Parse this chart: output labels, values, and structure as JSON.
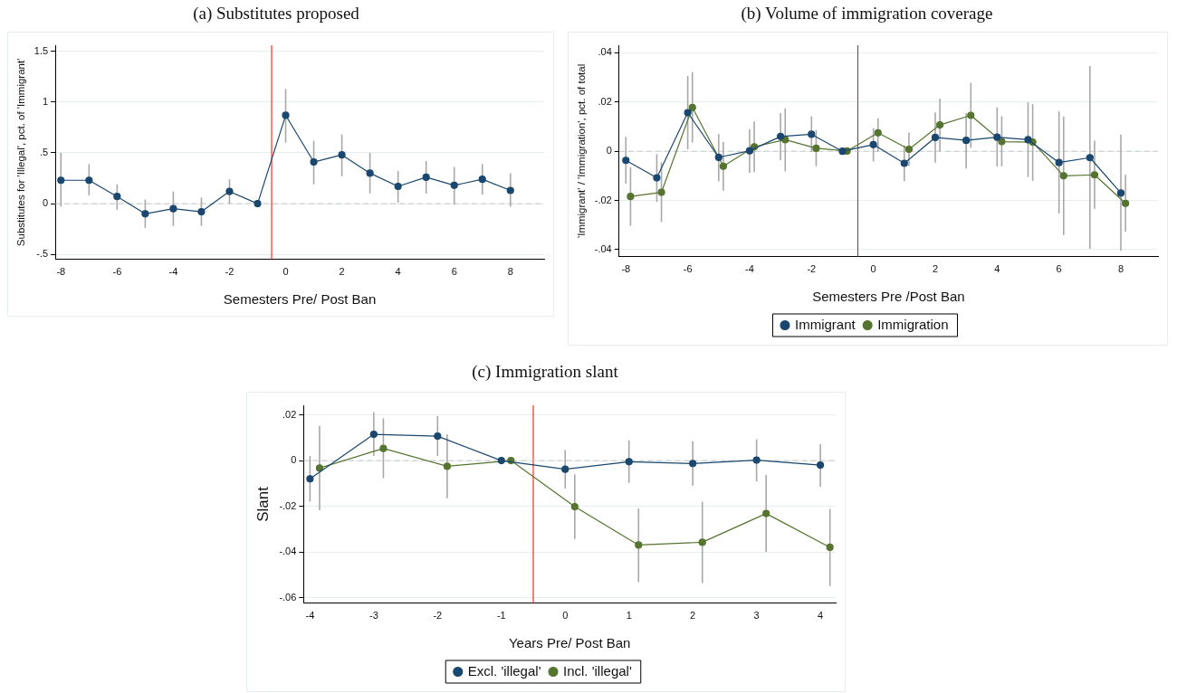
{
  "chart_data": [
    {
      "type": "line",
      "title": "(a) Substitutes proposed",
      "xlabel": "Semesters Pre/ Post Ban",
      "ylabel": "Substitutes for 'Illegal', pct. of 'Immigrant'",
      "marker": "circle",
      "grid": "y",
      "legend": false,
      "xlim": [
        -8.2,
        9.2
      ],
      "xticks": [
        -8,
        -6,
        -4,
        -2,
        0,
        2,
        4,
        6,
        8
      ],
      "ylim": [
        -0.55,
        1.56
      ],
      "yticks": [
        {
          "value": -0.5,
          "label": "-.5"
        },
        0,
        {
          "value": 0.5,
          "label": ".5"
        },
        1,
        1.5
      ],
      "ref_lines": [
        {
          "axis": "x",
          "value": -0.5,
          "color": "#ff0000",
          "line_style": "solid"
        },
        {
          "axis": "y",
          "value": 0,
          "color": "#c8c8c8",
          "line_style": "dashed"
        }
      ],
      "series": [
        {
          "color": "#1a476f",
          "x": [
            -8,
            -7,
            -6,
            -5,
            -4,
            -3,
            -2,
            -1,
            0,
            1,
            2,
            3,
            4,
            5,
            6,
            7,
            8
          ],
          "values": [
            0.23,
            0.23,
            0.07,
            -0.1,
            -0.05,
            -0.08,
            0.12,
            0,
            0.87,
            0.41,
            0.48,
            0.3,
            0.17,
            0.26,
            0.18,
            0.24,
            0.13
          ],
          "errors": [
            [
              -0.03,
              0.5
            ],
            [
              0.08,
              0.39
            ],
            [
              -0.06,
              0.19
            ],
            [
              -0.24,
              0.04
            ],
            [
              -0.22,
              0.12
            ],
            [
              -0.22,
              0.06
            ],
            [
              0.0,
              0.24
            ],
            null,
            [
              0.6,
              1.13
            ],
            [
              0.19,
              0.62
            ],
            [
              0.27,
              0.68
            ],
            [
              0.1,
              0.5
            ],
            [
              0.01,
              0.32
            ],
            [
              0.1,
              0.42
            ],
            [
              -0.01,
              0.36
            ],
            [
              0.09,
              0.39
            ],
            [
              -0.03,
              0.3
            ]
          ]
        }
      ]
    },
    {
      "type": "line",
      "title": "(b) Volume of immigration coverage",
      "xlabel": "Semesters Pre /Post Ban",
      "ylabel": "'Immigrant' / 'Immigration', pct. of total",
      "marker": "circle",
      "grid": "y",
      "legend": "bottom",
      "xlim": [
        -8.22,
        9.2
      ],
      "xticks": [
        -8,
        -6,
        -4,
        -2,
        0,
        2,
        4,
        6,
        8
      ],
      "ylim": [
        -0.0429,
        0.0431
      ],
      "yticks": [
        {
          "value": -0.04,
          "label": "-.04"
        },
        {
          "value": -0.02,
          "label": "-.02"
        },
        0,
        {
          "value": 0.02,
          "label": ".02"
        },
        {
          "value": 0.04,
          "label": ".04"
        }
      ],
      "ref_lines": [
        {
          "axis": "x",
          "value": -0.5,
          "color": "#ff0000",
          "line_style": "solid"
        },
        {
          "axis": "y",
          "value": 0,
          "color": "#c8c8c8",
          "line_style": "dashed"
        }
      ],
      "series": [
        {
          "name": "Immigrant",
          "color": "#1a476f",
          "x": [
            -8,
            -7,
            -6,
            -5,
            -4,
            -3,
            -2,
            -1,
            0,
            1,
            2,
            3,
            4,
            5,
            6,
            7,
            8
          ],
          "values": [
            -0.0037,
            -0.0108,
            0.0157,
            -0.0025,
            0.0002,
            0.006,
            0.0069,
            0,
            0.0027,
            -0.0049,
            0.0056,
            0.0044,
            0.0057,
            0.0047,
            -0.0046,
            -0.0026,
            -0.017
          ],
          "errors": [
            [
              -0.0132,
              0.0058
            ],
            [
              -0.0206,
              -0.0012
            ],
            [
              0.0008,
              0.0306
            ],
            [
              -0.0122,
              0.007
            ],
            [
              -0.0088,
              0.009
            ],
            [
              -0.0036,
              0.0155
            ],
            [
              -0.0003,
              0.0142
            ],
            null,
            [
              -0.0042,
              0.0094
            ],
            [
              -0.0122,
              0.0024
            ],
            [
              -0.0046,
              0.0158
            ],
            [
              -0.007,
              0.0155
            ],
            [
              -0.0062,
              0.0178
            ],
            [
              -0.0105,
              0.0199
            ],
            [
              -0.0253,
              0.0162
            ],
            [
              -0.0397,
              0.0346
            ],
            [
              -0.0405,
              0.0068
            ]
          ]
        },
        {
          "name": "Immigration",
          "color": "#55752f",
          "x": [
            -7.85,
            -6.85,
            -5.85,
            -4.85,
            -3.85,
            -2.85,
            -1.85,
            -0.85,
            0.15,
            1.15,
            2.15,
            3.15,
            4.15,
            5.15,
            6.15,
            7.15,
            8.15
          ],
          "values": [
            -0.0184,
            -0.0167,
            0.0178,
            -0.0061,
            0.0018,
            0.0047,
            0.0012,
            0.0001,
            0.0075,
            0.0008,
            0.0107,
            0.0146,
            0.0039,
            0.0037,
            -0.01,
            -0.0096,
            -0.0212
          ],
          "errors": [
            [
              -0.0303,
              -0.0065
            ],
            [
              -0.0288,
              -0.0045
            ],
            [
              0.0035,
              0.0322
            ],
            [
              -0.016,
              0.0037
            ],
            [
              -0.0085,
              0.0121
            ],
            [
              -0.0082,
              0.0174
            ],
            [
              -0.0061,
              0.0086
            ],
            null,
            [
              -0.0003,
              0.0134
            ],
            [
              -0.006,
              0.0075
            ],
            [
              0,
              0.0214
            ],
            [
              0.0014,
              0.0278
            ],
            [
              -0.0061,
              0.0142
            ],
            [
              -0.012,
              0.0192
            ],
            [
              -0.0341,
              0.0141
            ],
            [
              -0.0234,
              0.0043
            ],
            [
              -0.0328,
              -0.0096
            ]
          ]
        }
      ]
    },
    {
      "type": "line",
      "title": "(c) Immigration slant",
      "xlabel": "Years Pre/ Post Ban",
      "ylabel": "Slant",
      "marker": "circle",
      "grid": "y",
      "legend": "bottom",
      "xlim": [
        -4.1,
        4.24
      ],
      "xticks": [
        -4,
        -3,
        -2,
        -1,
        0,
        1,
        2,
        3,
        4
      ],
      "ylim": [
        -0.0625,
        0.0242
      ],
      "yticks": [
        {
          "value": -0.06,
          "label": "-.06"
        },
        {
          "value": -0.04,
          "label": "-.04"
        },
        {
          "value": -0.02,
          "label": "-.02"
        },
        0,
        {
          "value": 0.02,
          "label": ".02"
        }
      ],
      "ref_lines": [
        {
          "axis": "x",
          "value": -0.5,
          "color": "#ff0000",
          "line_style": "solid"
        },
        {
          "axis": "y",
          "value": 0,
          "color": "#c8c8c8",
          "line_style": "dashed"
        }
      ],
      "series": [
        {
          "name": "Excl. 'illegal'",
          "color": "#1a476f",
          "x": [
            -4,
            -3,
            -2,
            -1,
            0,
            1,
            2,
            3,
            4
          ],
          "values": [
            -0.008,
            0.0115,
            0.0107,
            0,
            -0.0038,
            -0.0005,
            -0.0013,
            0.0002,
            -0.002
          ],
          "errors": [
            [
              -0.018,
              0.002
            ],
            [
              0.002,
              0.0212
            ],
            [
              0.002,
              0.0195
            ],
            null,
            [
              -0.0122,
              0.0046
            ],
            [
              -0.0098,
              0.0088
            ],
            [
              -0.011,
              0.0085
            ],
            [
              -0.0092,
              0.0093
            ],
            [
              -0.0115,
              0.0072
            ]
          ]
        },
        {
          "name": "Incl. 'illegal'",
          "color": "#55752f",
          "x": [
            -3.85,
            -2.85,
            -1.85,
            -0.85,
            0.15,
            1.15,
            2.15,
            3.15,
            4.15
          ],
          "values": [
            -0.0033,
            0.0053,
            -0.0025,
            0,
            -0.0202,
            -0.037,
            -0.0358,
            -0.0232,
            -0.038
          ],
          "errors": [
            [
              -0.0218,
              0.0152
            ],
            [
              -0.0077,
              0.0185
            ],
            [
              -0.0165,
              0.0115
            ],
            null,
            [
              -0.0343,
              -0.006
            ],
            [
              -0.0532,
              -0.021
            ],
            [
              -0.0537,
              -0.018
            ],
            [
              -0.04,
              -0.0063
            ],
            [
              -0.055,
              -0.0212
            ]
          ]
        }
      ]
    }
  ]
}
